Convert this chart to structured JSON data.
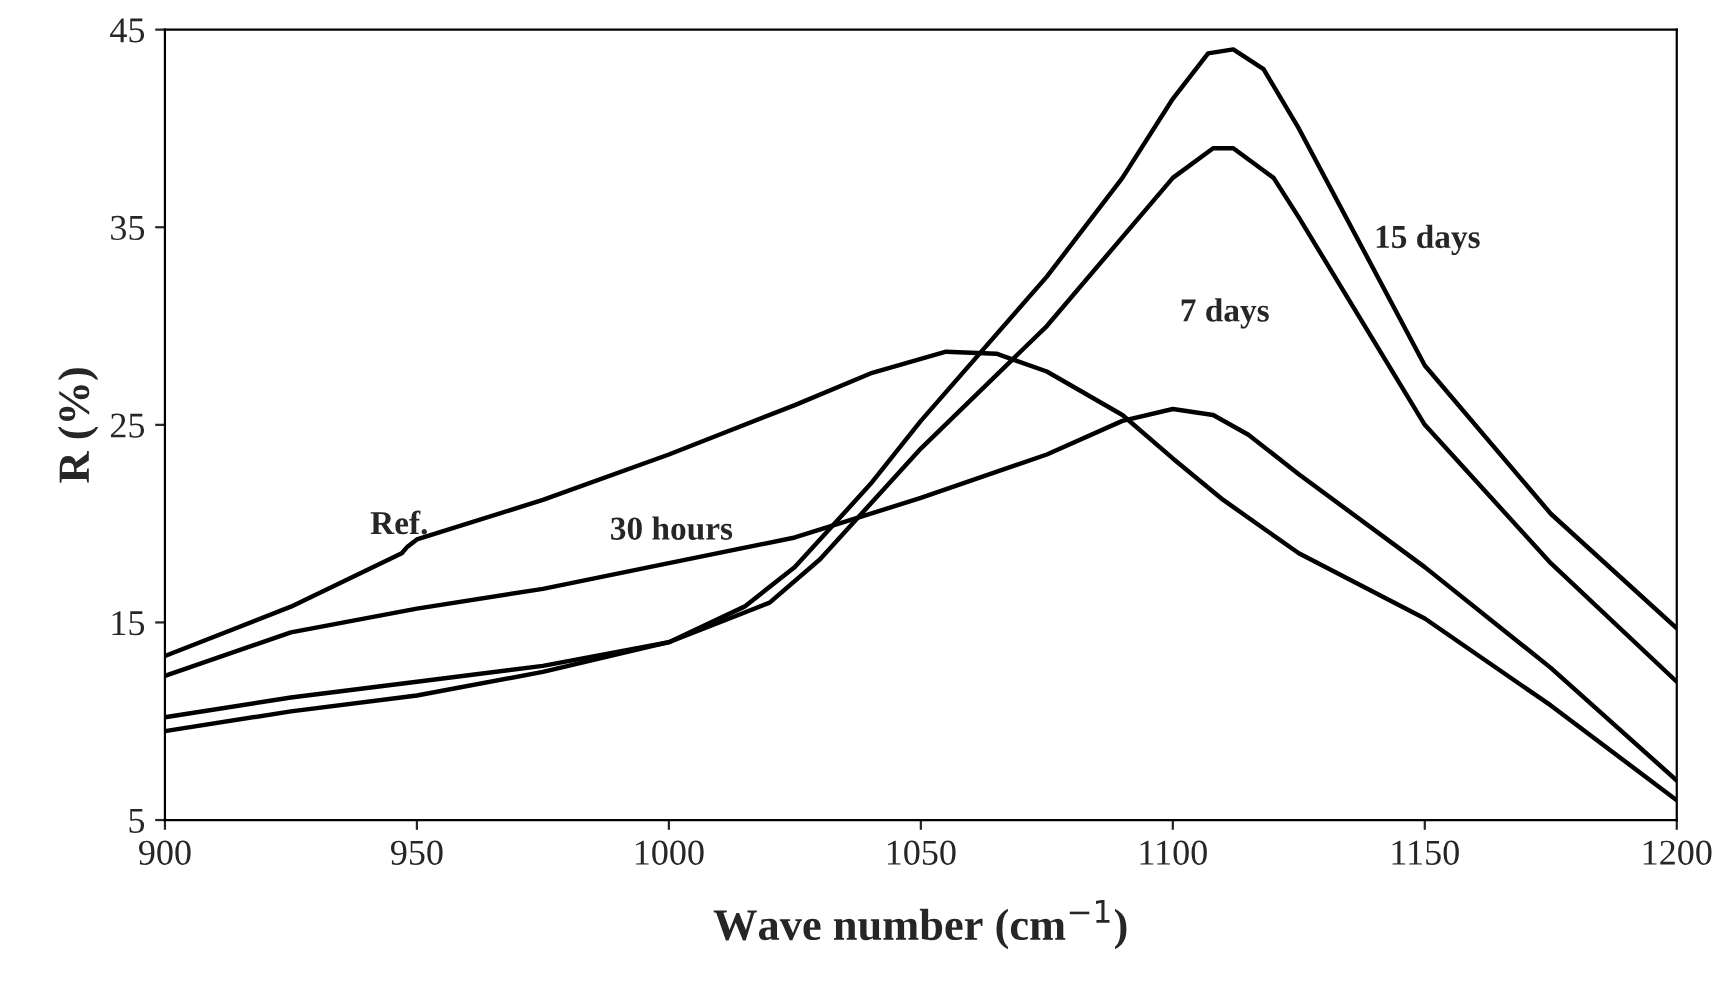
{
  "chart_data": {
    "type": "line",
    "xlabel": "Wave number (cm$^{−1}$)",
    "ylabel": "R (%)",
    "xlim": [
      900,
      1200
    ],
    "xticks": [
      900,
      950,
      1000,
      1050,
      1100,
      1150,
      1200
    ],
    "ylim": [
      5,
      45
    ],
    "yticks": [
      5,
      15,
      25,
      35,
      45
    ],
    "grid": false,
    "legend": false,
    "marker": "none",
    "line_style": "solid",
    "series": [
      {
        "color": "#000000",
        "x": [
          900,
          925,
          947,
          948,
          950,
          975,
          1000,
          1025,
          1040,
          1055,
          1065,
          1075,
          1090,
          1100,
          1110,
          1125,
          1150,
          1175,
          1200
        ],
        "values": [
          13.3,
          15.8,
          18.5,
          18.8,
          19.2,
          21.2,
          23.5,
          26.0,
          27.6,
          28.7,
          28.6,
          27.7,
          25.5,
          23.3,
          21.2,
          18.5,
          15.2,
          10.8,
          6.0
        ]
      },
      {
        "color": "#000000",
        "x": [
          900,
          925,
          950,
          975,
          1000,
          1025,
          1050,
          1075,
          1090,
          1100,
          1108,
          1115,
          1125,
          1150,
          1175,
          1200
        ],
        "values": [
          12.3,
          14.5,
          15.7,
          16.7,
          18.0,
          19.3,
          21.3,
          23.5,
          25.2,
          25.8,
          25.5,
          24.5,
          22.5,
          17.8,
          12.7,
          7.0
        ]
      },
      {
        "color": "#000000",
        "x": [
          900,
          925,
          950,
          975,
          1000,
          1020,
          1030,
          1050,
          1075,
          1090,
          1100,
          1108,
          1112,
          1120,
          1125,
          1150,
          1175,
          1200
        ],
        "values": [
          9.5,
          10.5,
          11.3,
          12.5,
          14.0,
          16.0,
          18.2,
          23.8,
          30.0,
          34.5,
          37.5,
          39.0,
          39.0,
          37.5,
          35.5,
          25.0,
          18.0,
          12.0
        ]
      },
      {
        "color": "#000000",
        "x": [
          900,
          925,
          950,
          975,
          1000,
          1015,
          1025,
          1040,
          1050,
          1075,
          1090,
          1100,
          1107,
          1112,
          1118,
          1125,
          1150,
          1175,
          1200
        ],
        "values": [
          10.2,
          11.2,
          12.0,
          12.8,
          14.0,
          15.8,
          17.8,
          22.0,
          25.2,
          32.5,
          37.5,
          41.5,
          43.8,
          44.0,
          43.0,
          40.0,
          28.0,
          20.5,
          14.7
        ]
      }
    ],
    "annotations": [
      "Ref.",
      "30 hours",
      "7 days",
      "15 days"
    ]
  }
}
